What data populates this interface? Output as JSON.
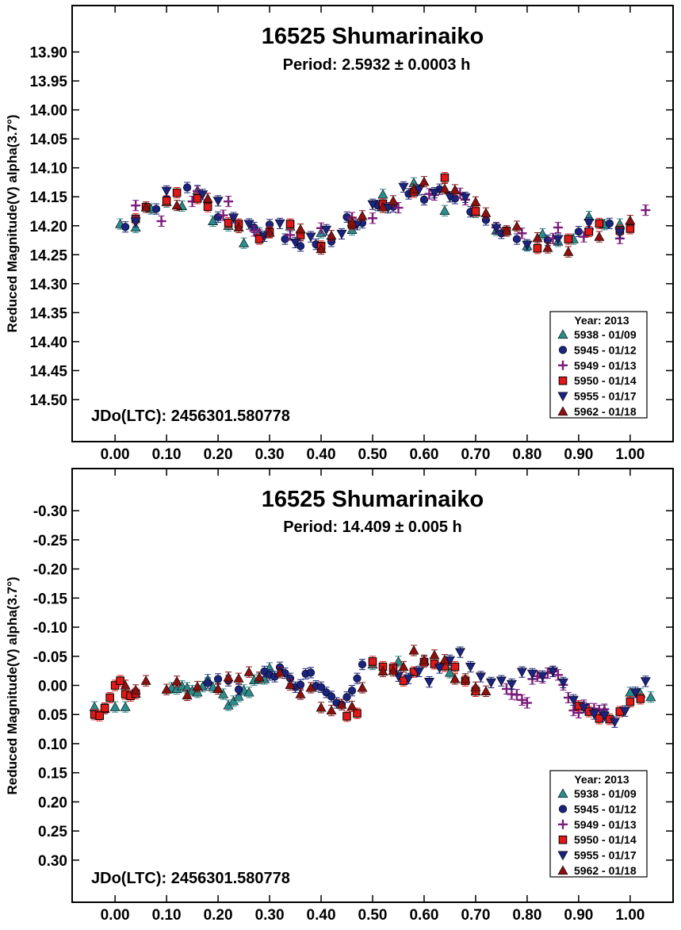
{
  "chart_data": [
    {
      "type": "scatter",
      "title": "16525 Shumarinaiko",
      "subtitle": "Period: 2.5932 ± 0.0003 h",
      "ylabel": "Reduced Magnitude(V) alpha(3.7°)",
      "xlabel": "",
      "annotation": "JDo(LTC): 2456301.580778",
      "xlim": [
        -0.06,
        1.06
      ],
      "ylim": [
        14.55,
        13.85
      ],
      "x_ticks": [
        0.0,
        0.1,
        0.2,
        0.3,
        0.4,
        0.5,
        0.6,
        0.7,
        0.8,
        0.9,
        1.0
      ],
      "x_tick_labels": [
        "0.00",
        "0.10",
        "0.20",
        "0.30",
        "0.40",
        "0.50",
        "0.60",
        "0.70",
        "0.80",
        "0.90",
        "1.00"
      ],
      "y_ticks": [
        13.9,
        13.95,
        14.0,
        14.05,
        14.1,
        14.15,
        14.2,
        14.25,
        14.3,
        14.35,
        14.4,
        14.45,
        14.5
      ],
      "y_tick_labels": [
        "13.90",
        "13.95",
        "14.00",
        "14.05",
        "14.10",
        "14.15",
        "14.20",
        "14.25",
        "14.30",
        "14.35",
        "14.40",
        "14.45",
        "14.50"
      ],
      "y_inverted": true,
      "grid": false,
      "legend_position": "bottom-right",
      "legend_title": "Year: 2013",
      "error_bars": true,
      "curve": {
        "mean": 14.185,
        "terms": [
          [
            1,
            0.0,
            0.0
          ],
          [
            2,
            -0.035,
            0.0
          ],
          [
            3,
            0.014,
            0.0
          ],
          [
            4,
            0.004,
            0.0
          ]
        ]
      },
      "series": [
        {
          "name": "5938 - 01/09",
          "marker": "triangle-up",
          "color": "#2a8c8c",
          "x": [
            0.8,
            0.86,
            0.92,
            0.98,
            0.04,
            0.1,
            0.16,
            0.22,
            0.28,
            0.34,
            0.4,
            0.46,
            0.52,
            0.58,
            0.64,
            0.7,
            0.74,
            0.83,
            0.89,
            0.95,
            0.01,
            0.07,
            0.13,
            0.19,
            0.25
          ],
          "y": [
            14.235,
            14.227,
            14.184,
            14.197,
            14.203,
            14.159,
            14.139,
            14.2,
            14.212,
            14.201,
            14.212,
            14.207,
            14.146,
            14.126,
            14.174,
            14.177,
            14.208,
            14.214,
            14.223,
            14.198,
            14.197,
            14.171,
            14.166,
            14.192,
            14.23
          ]
        },
        {
          "name": "5945 - 01/12",
          "marker": "circle",
          "color": "#1a237e",
          "x": [
            0.3,
            0.36,
            0.42,
            0.48,
            0.54,
            0.6,
            0.66,
            0.72,
            0.78,
            0.84,
            0.9,
            0.96,
            0.02,
            0.08,
            0.14,
            0.2,
            0.27,
            0.33,
            0.39,
            0.45,
            0.51,
            0.57,
            0.63,
            0.69,
            0.75
          ],
          "y": [
            14.198,
            14.235,
            14.227,
            14.195,
            14.167,
            14.155,
            14.153,
            14.19,
            14.223,
            14.225,
            14.21,
            14.196,
            14.202,
            14.171,
            14.134,
            14.185,
            14.203,
            14.223,
            14.232,
            14.185,
            14.165,
            14.145,
            14.137,
            14.176,
            14.213
          ]
        },
        {
          "name": "5949 - 01/13",
          "marker": "plus",
          "color": "#7b1a7b",
          "x": [
            0.5,
            0.62,
            0.68,
            0.74,
            0.86,
            0.92,
            0.98,
            0.04,
            0.16,
            0.22,
            0.28,
            0.34,
            0.4,
            0.46,
            0.55,
            0.61,
            0.67,
            0.79,
            0.85,
            0.91,
            1.03,
            0.09,
            0.15,
            0.21,
            0.27
          ],
          "y": [
            14.187,
            14.147,
            14.155,
            14.203,
            14.203,
            14.206,
            14.222,
            14.165,
            14.14,
            14.158,
            14.215,
            14.216,
            14.204,
            14.186,
            14.169,
            14.145,
            14.144,
            14.213,
            14.222,
            14.219,
            14.173,
            14.192,
            14.158,
            14.182,
            14.209
          ]
        },
        {
          "name": "5950 - 01/14",
          "marker": "square",
          "color": "#e01818",
          "x": [
            0.92,
            0.98,
            0.04,
            0.1,
            0.16,
            0.22,
            0.28,
            0.34,
            0.4,
            0.46,
            0.52,
            0.58,
            0.64,
            0.7,
            0.76,
            0.82,
            0.88,
            0.94,
            1.0,
            0.06,
            0.12,
            0.18,
            0.24,
            0.3,
            0.36
          ],
          "y": [
            14.21,
            14.208,
            14.188,
            14.157,
            14.153,
            14.195,
            14.223,
            14.197,
            14.235,
            14.198,
            14.162,
            14.142,
            14.117,
            14.175,
            14.209,
            14.239,
            14.223,
            14.196,
            14.205,
            14.168,
            14.143,
            14.167,
            14.197,
            14.211,
            14.216
          ]
        },
        {
          "name": "5955 - 01/17",
          "marker": "triangle-down",
          "color": "#1a237e",
          "x": [
            0.2,
            0.26,
            0.32,
            0.38,
            0.44,
            0.5,
            0.56,
            0.62,
            0.68,
            0.74,
            0.8,
            0.86,
            0.92,
            0.98,
            0.04,
            0.1,
            0.17,
            0.23,
            0.29,
            0.35,
            0.41,
            0.47,
            0.53,
            0.59,
            0.65
          ],
          "y": [
            14.157,
            14.197,
            14.196,
            14.219,
            14.214,
            14.163,
            14.133,
            14.143,
            14.151,
            14.204,
            14.233,
            14.223,
            14.195,
            14.212,
            14.193,
            14.14,
            14.146,
            14.186,
            14.218,
            14.229,
            14.207,
            14.198,
            14.169,
            14.138,
            14.15
          ]
        },
        {
          "name": "5962 - 01/18",
          "marker": "triangle-up",
          "color": "#8b1010",
          "x": [
            0.4,
            0.46,
            0.52,
            0.58,
            0.64,
            0.7,
            0.76,
            0.82,
            0.88,
            0.94,
            1.0,
            0.06,
            0.12,
            0.18,
            0.24,
            0.3,
            0.36,
            0.42,
            0.48,
            0.54,
            0.6,
            0.66,
            0.72,
            0.78,
            0.84
          ],
          "y": [
            14.24,
            14.194,
            14.168,
            14.137,
            14.136,
            14.159,
            14.209,
            14.221,
            14.245,
            14.219,
            14.191,
            14.168,
            14.165,
            14.153,
            14.203,
            14.212,
            14.206,
            14.217,
            14.183,
            14.157,
            14.124,
            14.138,
            14.178,
            14.201,
            14.238
          ]
        }
      ]
    },
    {
      "type": "scatter",
      "title": "16525 Shumarinaiko",
      "subtitle": "Period: 14.409 ± 0.005 h",
      "ylabel": "Reduced Magnitude(V) alpha(3.7°)",
      "xlabel": "",
      "annotation": "JDo(LTC): 2456301.580778",
      "xlim": [
        -0.06,
        1.06
      ],
      "ylim": [
        0.35,
        -0.35
      ],
      "x_ticks": [
        0.0,
        0.1,
        0.2,
        0.3,
        0.4,
        0.5,
        0.6,
        0.7,
        0.8,
        0.9,
        1.0
      ],
      "x_tick_labels": [
        "0.00",
        "0.10",
        "0.20",
        "0.30",
        "0.40",
        "0.50",
        "0.60",
        "0.70",
        "0.80",
        "0.90",
        "1.00"
      ],
      "y_ticks": [
        -0.3,
        -0.25,
        -0.2,
        -0.15,
        -0.1,
        -0.05,
        0.0,
        0.05,
        0.1,
        0.15,
        0.2,
        0.25,
        0.3
      ],
      "y_tick_labels": [
        "-0.30",
        "-0.25",
        "-0.20",
        "-0.15",
        "-0.10",
        "-0.05",
        "0.00",
        "0.05",
        "0.10",
        "0.15",
        "0.20",
        "0.25",
        "0.30"
      ],
      "y_inverted": true,
      "grid": false,
      "legend_position": "bottom-right",
      "legend_title": "Year: 2013",
      "error_bars": true,
      "curve": {
        "mean": 0.005,
        "terms": [
          [
            1,
            0.007,
            0.02
          ],
          [
            2,
            -0.012,
            -0.004
          ],
          [
            3,
            0.006,
            0.0
          ],
          [
            4,
            0.009,
            0.0
          ]
        ]
      },
      "series": [
        {
          "name": "5938 - 01/09",
          "marker": "triangle-up",
          "color": "#2a8c8c",
          "x": [
            0.11,
            0.12,
            0.13,
            0.14,
            0.15,
            0.16,
            0.17,
            0.18,
            0.19,
            0.2,
            0.21,
            0.22,
            0.23,
            0.24,
            0.25,
            0.26,
            0.27,
            0.28,
            0.29,
            0.3,
            -0.04,
            -0.02,
            0.0,
            0.02,
            0.04,
            0.5,
            0.55,
            0.6,
            0.65,
            0.7,
            1.0,
            1.02,
            1.04,
            0.95
          ],
          "y": [
            0.004,
            0.006,
            0.001,
            0.004,
            0.009,
            0.012,
            0.002,
            -0.01,
            0.003,
            0.006,
            0.015,
            0.034,
            0.027,
            0.019,
            0.008,
            0.012,
            -0.009,
            -0.012,
            -0.011,
            -0.03,
            0.037,
            0.04,
            0.037,
            0.037,
            0.014,
            -0.036,
            -0.041,
            -0.042,
            -0.022,
            0.01,
            0.012,
            0.014,
            0.02,
            0.043
          ]
        },
        {
          "name": "5945 - 01/12",
          "marker": "circle",
          "color": "#1a237e",
          "x": [
            0.29,
            0.3,
            0.31,
            0.32,
            0.33,
            0.34,
            0.35,
            0.36,
            0.37,
            0.38,
            0.39,
            0.4,
            0.41,
            0.42,
            0.43,
            0.44,
            0.45,
            0.46,
            0.47,
            0.48,
            0.18,
            0.2,
            0.22,
            0.24
          ],
          "y": [
            -0.024,
            -0.018,
            -0.015,
            -0.031,
            -0.021,
            -0.012,
            0.003,
            -0.001,
            -0.02,
            -0.022,
            0.001,
            0.003,
            0.012,
            0.019,
            0.03,
            0.033,
            0.02,
            0.009,
            -0.012,
            -0.036,
            -0.004,
            -0.011,
            -0.008,
            0.007
          ]
        },
        {
          "name": "5949 - 01/13",
          "marker": "plus",
          "color": "#7b1a7b",
          "x": [
            0.76,
            0.77,
            0.78,
            0.79,
            0.8,
            0.81,
            0.82,
            0.83,
            0.84,
            0.85,
            0.86,
            0.87,
            0.88,
            0.89,
            0.9,
            0.91,
            0.92,
            0.93,
            0.94,
            0.95
          ],
          "y": [
            0.006,
            0.015,
            0.016,
            0.025,
            0.03,
            -0.011,
            -0.016,
            -0.013,
            -0.021,
            -0.024,
            -0.018,
            -0.001,
            0.021,
            0.043,
            0.047,
            0.034,
            0.04,
            0.04,
            0.043,
            0.041
          ]
        },
        {
          "name": "5950 - 01/14",
          "marker": "square",
          "color": "#e01818",
          "x": [
            -0.04,
            -0.03,
            -0.02,
            -0.01,
            0.0,
            0.01,
            0.02,
            0.03,
            0.04,
            0.5,
            0.52,
            0.54,
            0.56,
            0.58,
            0.6,
            0.62,
            0.64,
            0.66,
            0.68,
            0.7,
            0.9,
            0.92,
            0.94,
            0.96,
            0.98,
            1.0,
            1.02,
            0.45,
            0.47
          ],
          "y": [
            0.05,
            0.052,
            0.039,
            0.021,
            0.0,
            -0.008,
            0.015,
            0.018,
            0.014,
            -0.041,
            -0.032,
            -0.03,
            -0.008,
            -0.023,
            -0.04,
            -0.037,
            -0.033,
            -0.032,
            -0.008,
            0.01,
            0.035,
            0.045,
            0.057,
            0.058,
            0.045,
            0.028,
            0.023,
            0.053,
            0.048
          ]
        },
        {
          "name": "5955 - 01/17",
          "marker": "triangle-down",
          "color": "#1a237e",
          "x": [
            0.55,
            0.57,
            0.59,
            0.61,
            0.63,
            0.65,
            0.67,
            0.69,
            0.71,
            0.73,
            0.75,
            0.77,
            0.79,
            0.81,
            0.83,
            0.85,
            0.87,
            0.89,
            0.91,
            0.93,
            0.95,
            0.97,
            0.99,
            1.01,
            1.03
          ],
          "y": [
            -0.016,
            -0.012,
            -0.024,
            -0.006,
            -0.03,
            -0.043,
            -0.057,
            -0.032,
            -0.015,
            -0.005,
            -0.008,
            -0.002,
            -0.023,
            -0.02,
            -0.016,
            -0.024,
            -0.005,
            0.025,
            0.038,
            0.049,
            0.052,
            0.063,
            0.044,
            0.012,
            -0.007
          ]
        },
        {
          "name": "5962 - 01/18",
          "marker": "triangle-up",
          "color": "#8b1010",
          "x": [
            0.02,
            0.04,
            0.06,
            0.1,
            0.12,
            0.14,
            0.16,
            0.2,
            0.22,
            0.24,
            0.26,
            0.28,
            0.32,
            0.34,
            0.36,
            0.38,
            0.4,
            0.42,
            0.44,
            0.46,
            0.48,
            0.52,
            0.54,
            0.56,
            0.58,
            0.6,
            0.62,
            0.64,
            0.66,
            0.68,
            0.7,
            0.72
          ],
          "y": [
            0.0,
            0.008,
            -0.008,
            0.007,
            -0.007,
            0.017,
            0.002,
            0.006,
            -0.014,
            -0.012,
            -0.023,
            -0.014,
            -0.022,
            -0.001,
            0.015,
            0.004,
            0.038,
            0.043,
            0.033,
            0.036,
            0.004,
            -0.024,
            -0.025,
            -0.032,
            -0.06,
            -0.043,
            -0.052,
            -0.044,
            -0.011,
            -0.011,
            0.003,
            0.01
          ]
        }
      ]
    }
  ]
}
